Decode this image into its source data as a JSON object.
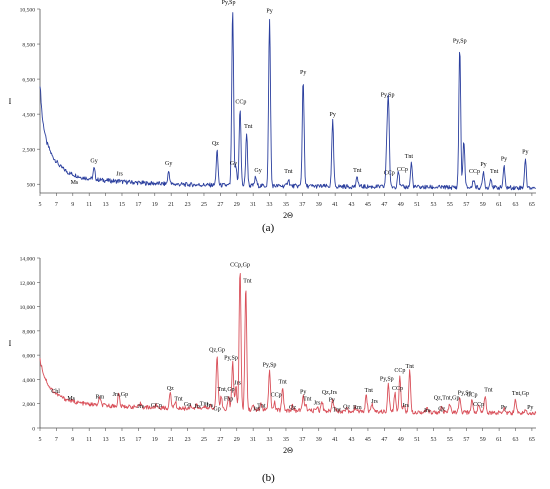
{
  "chart_data": [
    {
      "type": "line",
      "panel": "(a)",
      "xlabel": "2Θ",
      "ylabel": "I",
      "xlim": [
        5,
        65.5
      ],
      "ylim": [
        0,
        10500
      ],
      "xticks": [
        5,
        7,
        9,
        11,
        13,
        15,
        17,
        19,
        21,
        23,
        25,
        27,
        29,
        31,
        33,
        35,
        37,
        39,
        41,
        43,
        45,
        47,
        49,
        51,
        53,
        55,
        57,
        59,
        61,
        63,
        65
      ],
      "yticks": [
        500,
        2500,
        4500,
        6500,
        8500,
        10500
      ],
      "ytick_labels": [
        "500",
        "2,500",
        "4,500",
        "6,500",
        "8,500",
        "10,500"
      ],
      "line_color": "#2b3f9e",
      "baseline": [
        [
          5,
          6200
        ],
        [
          5.3,
          4200
        ],
        [
          5.8,
          2900
        ],
        [
          6.5,
          2100
        ],
        [
          7.5,
          1500
        ],
        [
          8.5,
          1150
        ],
        [
          10,
          900
        ],
        [
          12,
          760
        ],
        [
          15,
          640
        ],
        [
          18,
          560
        ],
        [
          22,
          490
        ],
        [
          26,
          450
        ],
        [
          30,
          420
        ],
        [
          35,
          400
        ],
        [
          40,
          380
        ],
        [
          45,
          360
        ],
        [
          50,
          340
        ],
        [
          55,
          320
        ],
        [
          60,
          310
        ],
        [
          65.5,
          300
        ]
      ],
      "peaks": [
        {
          "x": 8.8,
          "y": 650,
          "label": "Ms",
          "lx": 9.2,
          "ly": 520
        },
        {
          "x": 11.6,
          "y": 1400,
          "label": "Gy",
          "lx": 11.6,
          "ly": 1750
        },
        {
          "x": 14.7,
          "y": 700,
          "label": "Jrs",
          "lx": 14.7,
          "ly": 1000
        },
        {
          "x": 20.7,
          "y": 1250,
          "label": "Gy",
          "lx": 20.7,
          "ly": 1600
        },
        {
          "x": 26.6,
          "y": 2400,
          "label": "Qz",
          "lx": 26.4,
          "ly": 2750
        },
        {
          "x": 28.5,
          "y": 10500,
          "label": "Py,Sp",
          "lx": 28.0,
          "ly": 10800
        },
        {
          "x": 28.9,
          "y": 1500,
          "label": "Gy",
          "lx": 28.6,
          "ly": 1600
        },
        {
          "x": 29.4,
          "y": 4800,
          "label": "CCp",
          "lx": 29.5,
          "ly": 5100
        },
        {
          "x": 30.2,
          "y": 3400,
          "label": "Tnt",
          "lx": 30.4,
          "ly": 3700
        },
        {
          "x": 31.3,
          "y": 900,
          "label": "Gy",
          "lx": 31.6,
          "ly": 1200
        },
        {
          "x": 33.0,
          "y": 10000,
          "label": "Py",
          "lx": 33.0,
          "ly": 10300
        },
        {
          "x": 35.3,
          "y": 800,
          "label": "Tnt",
          "lx": 35.3,
          "ly": 1150
        },
        {
          "x": 37.1,
          "y": 6500,
          "label": "Py",
          "lx": 37.1,
          "ly": 6800
        },
        {
          "x": 40.7,
          "y": 4100,
          "label": "Py",
          "lx": 40.7,
          "ly": 4400
        },
        {
          "x": 43.7,
          "y": 900,
          "label": "Tnt",
          "lx": 43.7,
          "ly": 1200
        },
        {
          "x": 47.3,
          "y": 2500,
          "label": "CCp",
          "lx": 47.6,
          "ly": 1050
        },
        {
          "x": 47.5,
          "y": 5200,
          "label": "Py,Sp",
          "lx": 47.4,
          "ly": 5500
        },
        {
          "x": 48.7,
          "y": 1300,
          "label": "CCp",
          "lx": 49.2,
          "ly": 1250
        },
        {
          "x": 50.3,
          "y": 1700,
          "label": "Tnt",
          "lx": 50.0,
          "ly": 2000
        },
        {
          "x": 56.2,
          "y": 8300,
          "label": "Py,Sp",
          "lx": 56.2,
          "ly": 8600
        },
        {
          "x": 56.7,
          "y": 3000,
          "label": "",
          "lx": 0,
          "ly": 0
        },
        {
          "x": 57.9,
          "y": 800,
          "label": "CCp",
          "lx": 58.0,
          "ly": 1150
        },
        {
          "x": 59.1,
          "y": 1200,
          "label": "Py",
          "lx": 59.1,
          "ly": 1550
        },
        {
          "x": 60.0,
          "y": 850,
          "label": "Tnt",
          "lx": 60.4,
          "ly": 1150
        },
        {
          "x": 61.6,
          "y": 1500,
          "label": "Py",
          "lx": 61.6,
          "ly": 1850
        },
        {
          "x": 64.2,
          "y": 1900,
          "label": "Py",
          "lx": 64.2,
          "ly": 2250
        }
      ]
    },
    {
      "type": "line",
      "panel": "(b)",
      "xlabel": "2Θ",
      "ylabel": "I",
      "xlim": [
        5,
        65.5
      ],
      "ylim": [
        0,
        14000
      ],
      "xticks": [
        5,
        7,
        9,
        11,
        13,
        15,
        17,
        19,
        21,
        23,
        25,
        27,
        29,
        31,
        33,
        35,
        37,
        39,
        41,
        43,
        45,
        47,
        49,
        51,
        53,
        55,
        57,
        59,
        61,
        63,
        65
      ],
      "yticks": [
        0,
        2000,
        4000,
        6000,
        8000,
        10000,
        12000,
        14000
      ],
      "ytick_labels": [
        "0",
        "2,000",
        "4,000",
        "6,000",
        "8,000",
        "10,000",
        "12,000",
        "14,000"
      ],
      "line_color": "#d9505a",
      "baseline": [
        [
          5,
          5600
        ],
        [
          5.5,
          4300
        ],
        [
          6.2,
          3300
        ],
        [
          7,
          2800
        ],
        [
          8,
          2400
        ],
        [
          9.5,
          2100
        ],
        [
          11,
          1950
        ],
        [
          13,
          1850
        ],
        [
          16,
          1750
        ],
        [
          20,
          1650
        ],
        [
          25,
          1580
        ],
        [
          30,
          1520
        ],
        [
          35,
          1450
        ],
        [
          40,
          1400
        ],
        [
          45,
          1360
        ],
        [
          50,
          1320
        ],
        [
          55,
          1290
        ],
        [
          60,
          1260
        ],
        [
          65.5,
          1230
        ]
      ],
      "peaks": [
        {
          "x": 6.4,
          "y": 3200,
          "label": "Chl",
          "lx": 6.9,
          "ly": 2900
        },
        {
          "x": 8.8,
          "y": 2200,
          "label": "Ms",
          "lx": 8.8,
          "ly": 2300
        },
        {
          "x": 12.3,
          "y": 2500,
          "label": "Rm",
          "lx": 12.3,
          "ly": 2450
        },
        {
          "x": 14.6,
          "y": 2800,
          "label": "Jrs,Gp",
          "lx": 14.8,
          "ly": 2650
        },
        {
          "x": 17.3,
          "y": 2000,
          "label": "Jrs",
          "lx": 17.3,
          "ly": 1650
        },
        {
          "x": 19.2,
          "y": 1900,
          "label": "CCp",
          "lx": 19.2,
          "ly": 1750
        },
        {
          "x": 20.9,
          "y": 2900,
          "label": "Qz",
          "lx": 20.9,
          "ly": 3150
        },
        {
          "x": 21.5,
          "y": 2200,
          "label": "Tnt",
          "lx": 21.9,
          "ly": 2250
        },
        {
          "x": 23.4,
          "y": 1900,
          "label": "Gp",
          "lx": 23.0,
          "ly": 1800
        },
        {
          "x": 24.1,
          "y": 1900,
          "label": "Jrs",
          "lx": 24.2,
          "ly": 1650
        },
        {
          "x": 25.0,
          "y": 1900,
          "label": "Tnt",
          "lx": 25.0,
          "ly": 1850
        },
        {
          "x": 25.8,
          "y": 1900,
          "label": "Jrs",
          "lx": 25.7,
          "ly": 1750
        },
        {
          "x": 26.6,
          "y": 6000,
          "label": "Qz,Gp",
          "lx": 26.6,
          "ly": 6300
        },
        {
          "x": 27.1,
          "y": 2600,
          "label": "Tnt,Gp",
          "lx": 27.7,
          "ly": 3050
        },
        {
          "x": 26.8,
          "y": 1800,
          "label": "Gp",
          "lx": 26.6,
          "ly": 1450
        },
        {
          "x": 28.0,
          "y": 2600,
          "label": "Fbp",
          "lx": 28.0,
          "ly": 2250
        },
        {
          "x": 28.5,
          "y": 5400,
          "label": "Py,Sp",
          "lx": 28.3,
          "ly": 5650
        },
        {
          "x": 28.9,
          "y": 3400,
          "label": "Jrs",
          "lx": 29.1,
          "ly": 3600
        },
        {
          "x": 29.4,
          "y": 13000,
          "label": "CCp,Gp",
          "lx": 29.4,
          "ly": 13300
        },
        {
          "x": 30.1,
          "y": 11700,
          "label": "Tnt",
          "lx": 30.3,
          "ly": 12000
        },
        {
          "x": 31.0,
          "y": 1800,
          "label": "Jrs",
          "lx": 31.4,
          "ly": 1450
        },
        {
          "x": 32.0,
          "y": 2000,
          "label": "Tnt",
          "lx": 32.0,
          "ly": 1700
        },
        {
          "x": 33.0,
          "y": 4800,
          "label": "Py,Sp",
          "lx": 33.0,
          "ly": 5050
        },
        {
          "x": 33.6,
          "y": 2100,
          "label": "CCp",
          "lx": 33.8,
          "ly": 2600
        },
        {
          "x": 34.6,
          "y": 3300,
          "label": "Tnt",
          "lx": 34.6,
          "ly": 3650
        },
        {
          "x": 35.8,
          "y": 1800,
          "label": "Qz",
          "lx": 35.8,
          "ly": 1550
        },
        {
          "x": 37.1,
          "y": 2600,
          "label": "Py",
          "lx": 37.1,
          "ly": 2850
        },
        {
          "x": 37.4,
          "y": 1900,
          "label": "Tnt",
          "lx": 37.6,
          "ly": 2250
        },
        {
          "x": 38.8,
          "y": 1800,
          "label": "Jrs",
          "lx": 38.8,
          "ly": 1950
        },
        {
          "x": 39.4,
          "y": 2200,
          "label": "Qz,Jrs",
          "lx": 40.3,
          "ly": 2800
        },
        {
          "x": 40.7,
          "y": 2300,
          "label": "Py",
          "lx": 40.6,
          "ly": 2200
        },
        {
          "x": 41.0,
          "y": 1700,
          "label": "Tnt",
          "lx": 41.2,
          "ly": 1350
        },
        {
          "x": 42.4,
          "y": 1700,
          "label": "Qz",
          "lx": 42.4,
          "ly": 1600
        },
        {
          "x": 43.5,
          "y": 1700,
          "label": "Rm",
          "lx": 43.7,
          "ly": 1550
        },
        {
          "x": 44.8,
          "y": 2700,
          "label": "Tnt",
          "lx": 45.1,
          "ly": 2950
        },
        {
          "x": 45.5,
          "y": 2000,
          "label": "Jrs",
          "lx": 45.8,
          "ly": 2050
        },
        {
          "x": 47.5,
          "y": 3600,
          "label": "Py,Sp",
          "lx": 47.3,
          "ly": 3900
        },
        {
          "x": 48.3,
          "y": 2900,
          "label": "CCp",
          "lx": 48.6,
          "ly": 3150
        },
        {
          "x": 48.9,
          "y": 4300,
          "label": "CCp",
          "lx": 48.9,
          "ly": 4600
        },
        {
          "x": 50.1,
          "y": 4700,
          "label": "Tnt",
          "lx": 50.1,
          "ly": 4950
        },
        {
          "x": 49.4,
          "y": 1900,
          "label": "Jrs",
          "lx": 49.6,
          "ly": 1750
        },
        {
          "x": 52.2,
          "y": 1600,
          "label": "Jrs",
          "lx": 52.2,
          "ly": 1300
        },
        {
          "x": 54.0,
          "y": 1700,
          "label": "Qz",
          "lx": 54.0,
          "ly": 1450
        },
        {
          "x": 55.0,
          "y": 2000,
          "label": "Qz,Tnt,Gp",
          "lx": 54.6,
          "ly": 2350
        },
        {
          "x": 56.2,
          "y": 2400,
          "label": "Py,Sp",
          "lx": 56.8,
          "ly": 2750
        },
        {
          "x": 57.7,
          "y": 2400,
          "label": "CCp",
          "lx": 57.7,
          "ly": 2600
        },
        {
          "x": 58.5,
          "y": 2000,
          "label": "CCp",
          "lx": 58.5,
          "ly": 1800
        },
        {
          "x": 59.3,
          "y": 2700,
          "label": "Tnt",
          "lx": 59.7,
          "ly": 3000
        },
        {
          "x": 61.6,
          "y": 1700,
          "label": "Py",
          "lx": 61.6,
          "ly": 1550
        },
        {
          "x": 63.0,
          "y": 2300,
          "label": "Tnt,Gp",
          "lx": 63.6,
          "ly": 2700
        },
        {
          "x": 64.2,
          "y": 1500,
          "label": "Py",
          "lx": 64.8,
          "ly": 1550
        }
      ]
    }
  ]
}
